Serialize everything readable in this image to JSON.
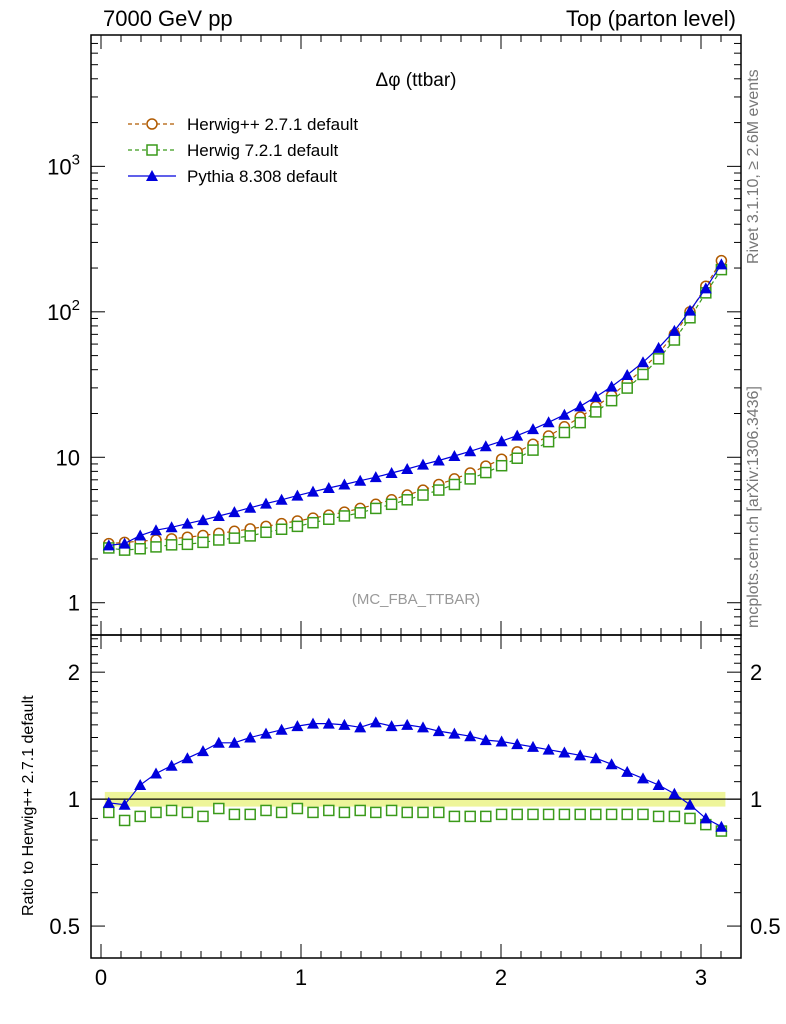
{
  "header": {
    "left": "7000 GeV pp",
    "right": "Top (parton level)"
  },
  "side_text": {
    "top": "Rivet 3.1.10, ≥ 2.6M events",
    "bottom": "mcplots.cern.ch [arXiv:1306.3436]"
  },
  "chart_data": [
    {
      "type": "line",
      "title": "Δφ (ttbar)",
      "annotation": "(MC_FBA_TTBAR)",
      "xlabel": "",
      "ylabel": "",
      "yscale": "log",
      "xlim": [
        -0.05,
        3.2
      ],
      "ylim": [
        0.6,
        8000
      ],
      "x_ticks": [
        "0",
        "1",
        "2",
        "3"
      ],
      "y_ticks": [
        "1",
        "10",
        "10^2",
        "10^3"
      ],
      "legend": "top-left",
      "x": [
        0.039,
        0.118,
        0.196,
        0.275,
        0.353,
        0.432,
        0.51,
        0.589,
        0.667,
        0.746,
        0.825,
        0.903,
        0.982,
        1.06,
        1.139,
        1.217,
        1.296,
        1.374,
        1.453,
        1.531,
        1.61,
        1.689,
        1.767,
        1.846,
        1.924,
        2.003,
        2.081,
        2.16,
        2.238,
        2.317,
        2.396,
        2.474,
        2.553,
        2.631,
        2.71,
        2.788,
        2.867,
        2.945,
        3.024,
        3.102
      ],
      "series": [
        {
          "name": "Herwig++ 2.7.1 default",
          "color": "#b05a00",
          "marker": "open-circle",
          "line": "dashed",
          "values": [
            2.55,
            2.6,
            2.65,
            2.7,
            2.75,
            2.82,
            2.9,
            3.0,
            3.1,
            3.22,
            3.35,
            3.5,
            3.65,
            3.82,
            4.0,
            4.2,
            4.45,
            4.75,
            5.1,
            5.5,
            5.95,
            6.5,
            7.1,
            7.8,
            8.7,
            9.7,
            10.9,
            12.3,
            14.0,
            16.2,
            18.9,
            22.3,
            26.6,
            32.5,
            40.5,
            52.0,
            70.0,
            100.0,
            150.0,
            225.0
          ]
        },
        {
          "name": "Herwig 7.2.1 default",
          "color": "#3a9a1a",
          "marker": "open-square",
          "line": "dashed",
          "values": [
            2.38,
            2.3,
            2.35,
            2.42,
            2.5,
            2.52,
            2.6,
            2.7,
            2.78,
            2.88,
            3.05,
            3.2,
            3.35,
            3.55,
            3.75,
            3.95,
            4.15,
            4.45,
            4.75,
            5.1,
            5.5,
            5.95,
            6.5,
            7.1,
            7.85,
            8.75,
            9.85,
            11.2,
            12.8,
            14.8,
            17.3,
            20.5,
            24.5,
            29.9,
            37.1,
            47.5,
            64.0,
            91.0,
            135.0,
            195.0
          ]
        },
        {
          "name": "Pythia 8.308 default",
          "color": "#0000dd",
          "marker": "filled-triangle",
          "line": "solid",
          "values": [
            2.48,
            2.55,
            2.9,
            3.15,
            3.3,
            3.5,
            3.7,
            3.95,
            4.2,
            4.5,
            4.8,
            5.1,
            5.45,
            5.8,
            6.15,
            6.5,
            6.9,
            7.3,
            7.8,
            8.3,
            8.9,
            9.5,
            10.2,
            11.0,
            11.9,
            12.9,
            14.1,
            15.6,
            17.4,
            19.6,
            22.4,
            26.0,
            30.6,
            36.8,
            45.0,
            56.5,
            74.0,
            102.0,
            145.0,
            212.0
          ]
        }
      ]
    },
    {
      "type": "line",
      "title": "",
      "xlabel": "",
      "ylabel": "Ratio to Herwig++ 2.7.1 default",
      "yscale": "log",
      "xlim": [
        -0.05,
        3.2
      ],
      "ylim": [
        0.42,
        2.45
      ],
      "x_ticks": [
        "0",
        "1",
        "2",
        "3"
      ],
      "y_ticks": [
        "0.5",
        "1",
        "2"
      ],
      "reference": {
        "value": 1.0,
        "band": [
          0.96,
          1.04
        ],
        "band_color": "#eef59a",
        "line_color": "#000000"
      },
      "x": [
        0.039,
        0.118,
        0.196,
        0.275,
        0.353,
        0.432,
        0.51,
        0.589,
        0.667,
        0.746,
        0.825,
        0.903,
        0.982,
        1.06,
        1.139,
        1.217,
        1.296,
        1.374,
        1.453,
        1.531,
        1.61,
        1.689,
        1.767,
        1.846,
        1.924,
        2.003,
        2.081,
        2.16,
        2.238,
        2.317,
        2.396,
        2.474,
        2.553,
        2.631,
        2.71,
        2.788,
        2.867,
        2.945,
        3.024,
        3.102
      ],
      "series": [
        {
          "name": "Herwig 7.2.1 default",
          "color": "#3a9a1a",
          "marker": "open-square",
          "line": "none",
          "values": [
            0.93,
            0.89,
            0.91,
            0.93,
            0.94,
            0.93,
            0.91,
            0.95,
            0.92,
            0.92,
            0.94,
            0.93,
            0.95,
            0.93,
            0.94,
            0.93,
            0.94,
            0.93,
            0.94,
            0.93,
            0.93,
            0.93,
            0.91,
            0.91,
            0.91,
            0.92,
            0.92,
            0.92,
            0.92,
            0.92,
            0.92,
            0.92,
            0.92,
            0.92,
            0.92,
            0.91,
            0.91,
            0.9,
            0.87,
            0.84
          ]
        },
        {
          "name": "Pythia 8.308 default",
          "color": "#0000dd",
          "marker": "filled-triangle",
          "line": "solid",
          "values": [
            0.98,
            0.97,
            1.08,
            1.15,
            1.2,
            1.25,
            1.3,
            1.36,
            1.36,
            1.4,
            1.43,
            1.46,
            1.49,
            1.51,
            1.51,
            1.5,
            1.48,
            1.52,
            1.49,
            1.5,
            1.48,
            1.45,
            1.43,
            1.41,
            1.38,
            1.37,
            1.35,
            1.33,
            1.31,
            1.29,
            1.27,
            1.25,
            1.21,
            1.16,
            1.12,
            1.08,
            1.03,
            0.97,
            0.9,
            0.86
          ]
        }
      ]
    }
  ]
}
